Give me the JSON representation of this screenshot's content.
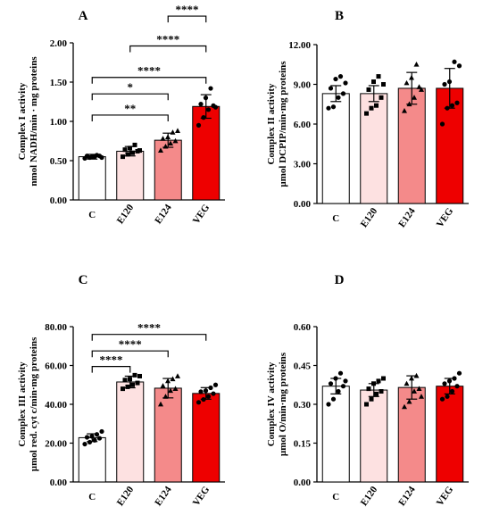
{
  "figure": {
    "panels": [
      "A",
      "B",
      "C",
      "D"
    ]
  },
  "chart_data": [
    {
      "type": "bar",
      "panel": "A",
      "categories": [
        "C",
        "E120",
        "E124",
        "VEG"
      ],
      "values": [
        0.55,
        0.62,
        0.76,
        1.19
      ],
      "errors": [
        0.03,
        0.06,
        0.09,
        0.15
      ],
      "points": [
        [
          0.53,
          0.54,
          0.55,
          0.56,
          0.56,
          0.55,
          0.57,
          0.54
        ],
        [
          0.55,
          0.58,
          0.6,
          0.62,
          0.64,
          0.66,
          0.7,
          0.63
        ],
        [
          0.63,
          0.68,
          0.72,
          0.75,
          0.78,
          0.8,
          0.86,
          0.88
        ],
        [
          0.95,
          1.05,
          1.15,
          1.2,
          1.22,
          1.3,
          1.42,
          1.18
        ]
      ],
      "markers": [
        "circle",
        "square",
        "triangle",
        "circle"
      ],
      "fills": [
        "#ffffff",
        "#fde1e1",
        "#f48a8a",
        "#ee0000"
      ],
      "ylabel": [
        "Complex I activity",
        "nmol NADH/min · mg proteins"
      ],
      "ylim": [
        0,
        2
      ],
      "yticks": [
        "0.00",
        "0.50",
        "1.00",
        "1.50",
        "2.00"
      ],
      "significance": [
        {
          "from": 2,
          "to": 3,
          "label": "****",
          "y": 2.34
        },
        {
          "from": 1,
          "to": 3,
          "label": "****",
          "y": 1.96
        },
        {
          "from": 0,
          "to": 3,
          "label": "****",
          "y": 1.56
        },
        {
          "from": 0,
          "to": 2,
          "label": "*",
          "y": 1.35
        },
        {
          "from": 0,
          "to": 2,
          "label": "**",
          "y": 1.08
        }
      ]
    },
    {
      "type": "bar",
      "panel": "B",
      "categories": [
        "C",
        "E120",
        "E124",
        "VEG"
      ],
      "values": [
        8.3,
        8.3,
        8.7,
        8.7
      ],
      "errors": [
        0.6,
        0.6,
        1.2,
        1.5
      ],
      "points": [
        [
          7.2,
          7.3,
          8.0,
          8.3,
          8.7,
          9.4,
          9.6,
          9.1
        ],
        [
          6.8,
          7.2,
          7.4,
          8.0,
          8.6,
          9.2,
          9.6,
          9.0
        ],
        [
          7.0,
          7.5,
          8.0,
          8.8,
          9.1,
          9.5,
          10.5,
          8.6
        ],
        [
          6.0,
          7.2,
          7.4,
          7.6,
          9.0,
          9.2,
          10.7,
          10.4
        ]
      ],
      "markers": [
        "circle",
        "square",
        "triangle",
        "circle"
      ],
      "fills": [
        "#ffffff",
        "#fde1e1",
        "#f48a8a",
        "#ee0000"
      ],
      "ylabel": [
        "Complex II activity",
        "µmol DCPIP/min·mg proteins"
      ],
      "ylim": [
        0,
        12
      ],
      "yticks": [
        "0.00",
        "3.00",
        "6.00",
        "9.00",
        "12.00"
      ],
      "significance": []
    },
    {
      "type": "bar",
      "panel": "C",
      "categories": [
        "C",
        "E120",
        "E124",
        "VEG"
      ],
      "values": [
        22.8,
        51.5,
        48.3,
        45.6
      ],
      "errors": [
        2.0,
        3.0,
        5.0,
        3.0
      ],
      "points": [
        [
          19.5,
          20.5,
          21.5,
          22.5,
          23.0,
          23.5,
          24.5,
          26.0
        ],
        [
          48.0,
          49.0,
          50.0,
          51.0,
          52.5,
          53.0,
          55.0,
          54.5
        ],
        [
          40.0,
          44.0,
          47.0,
          48.0,
          49.5,
          52.0,
          53.0,
          54.5
        ],
        [
          41.0,
          42.5,
          44.0,
          45.5,
          46.5,
          47.0,
          48.5,
          50.0
        ]
      ],
      "markers": [
        "circle",
        "square",
        "triangle",
        "circle"
      ],
      "fills": [
        "#ffffff",
        "#fde1e1",
        "#f48a8a",
        "#ee0000"
      ],
      "ylabel": [
        "Complex III activity",
        "µmol red. cyt c/min·mg proteins"
      ],
      "ylim": [
        0,
        80
      ],
      "yticks": [
        "0.00",
        "20.00",
        "40.00",
        "60.00",
        "80.00"
      ],
      "significance": [
        {
          "from": 0,
          "to": 3,
          "label": "****",
          "y": 76.0
        },
        {
          "from": 0,
          "to": 2,
          "label": "****",
          "y": 67.5
        },
        {
          "from": 0,
          "to": 1,
          "label": "****",
          "y": 59.5
        }
      ]
    },
    {
      "type": "bar",
      "panel": "D",
      "categories": [
        "C",
        "E120",
        "E124",
        "VEG"
      ],
      "values": [
        0.37,
        0.355,
        0.365,
        0.37
      ],
      "errors": [
        0.03,
        0.025,
        0.045,
        0.03
      ],
      "points": [
        [
          0.3,
          0.32,
          0.35,
          0.37,
          0.38,
          0.4,
          0.42,
          0.39
        ],
        [
          0.3,
          0.32,
          0.34,
          0.35,
          0.36,
          0.38,
          0.39,
          0.4
        ],
        [
          0.29,
          0.31,
          0.35,
          0.36,
          0.38,
          0.4,
          0.41,
          0.33
        ],
        [
          0.32,
          0.33,
          0.35,
          0.37,
          0.38,
          0.39,
          0.4,
          0.42
        ]
      ],
      "markers": [
        "circle",
        "square",
        "triangle",
        "circle"
      ],
      "fills": [
        "#ffffff",
        "#fde1e1",
        "#f48a8a",
        "#ee0000"
      ],
      "ylabel": [
        "Complex IV activity",
        "µmol O/min·mg proteins"
      ],
      "ylim": [
        0,
        0.6
      ],
      "yticks": [
        "0.00",
        "0.15",
        "0.30",
        "0.45",
        "0.60"
      ],
      "significance": []
    }
  ]
}
